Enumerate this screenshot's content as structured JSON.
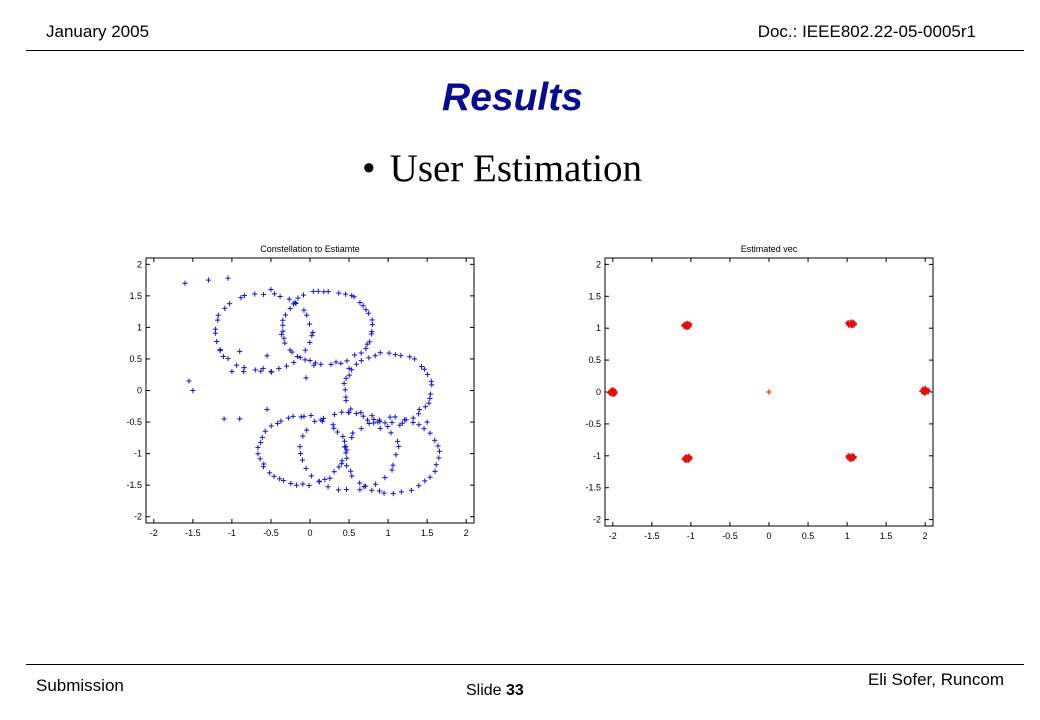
{
  "header": {
    "date": "January 2005",
    "doc": "Doc.: IEEE802.22-05-0005r1"
  },
  "title": "Results",
  "bullet": "User Estimation",
  "footer": {
    "submission": "Submission",
    "slide_label": "Slide",
    "slide_number": "33",
    "author": "Eli Sofer, Runcom"
  },
  "colors": {
    "title": "#0a0a8c",
    "series_blue": "#1515c8",
    "series_red": "#e01010"
  },
  "chart_data": [
    {
      "type": "scatter",
      "title": "Constellation to Estiamte",
      "marker": "+",
      "color": "#1515c8",
      "xlim": [
        -2.1,
        2.1
      ],
      "ylim": [
        -2.1,
        2.1
      ],
      "xticks": [
        -2,
        -1.5,
        -1,
        -0.5,
        0,
        0.5,
        1,
        1.5,
        2
      ],
      "yticks": [
        -2,
        -1.5,
        -1,
        -0.5,
        0,
        0.5,
        1,
        1.5,
        2
      ],
      "xtick_labels": [
        "-2",
        "-1.5",
        "-1",
        "-0.5",
        "0",
        "0.5",
        "1",
        "1.5",
        "2"
      ],
      "ytick_labels": [
        "-2",
        "-1.5",
        "-1",
        "-0.5",
        "0",
        "0.5",
        "1",
        "1.5",
        "2"
      ],
      "grid": false,
      "circles": [
        {
          "cx": -0.6,
          "cy": 0.92,
          "r": 0.62,
          "points": 34
        },
        {
          "cx": 0.22,
          "cy": 1.0,
          "r": 0.58,
          "points": 44
        },
        {
          "cx": 1.0,
          "cy": 0.03,
          "r": 0.56,
          "points": 38
        },
        {
          "cx": 0.5,
          "cy": -0.95,
          "r": 0.62,
          "points": 30
        },
        {
          "cx": 1.05,
          "cy": -1.03,
          "r": 0.6,
          "points": 36
        },
        {
          "cx": -0.1,
          "cy": -0.95,
          "r": 0.55,
          "points": 40
        }
      ],
      "scattered_points": [
        [
          -1.6,
          1.7
        ],
        [
          -1.3,
          1.75
        ],
        [
          -1.05,
          1.78
        ],
        [
          -0.5,
          1.6
        ],
        [
          -1.15,
          0.65
        ],
        [
          -0.9,
          0.62
        ],
        [
          -0.55,
          0.55
        ],
        [
          -1.0,
          0.3
        ],
        [
          -0.85,
          0.3
        ],
        [
          -0.6,
          0.35
        ],
        [
          -0.5,
          0.3
        ],
        [
          0.05,
          0.4
        ],
        [
          -1.55,
          0.15
        ],
        [
          -1.5,
          0.0
        ],
        [
          0.5,
          0.35
        ],
        [
          0.5,
          -0.35
        ],
        [
          -0.05,
          0.2
        ],
        [
          -1.1,
          -0.45
        ],
        [
          -0.9,
          -0.45
        ],
        [
          -0.55,
          -0.3
        ],
        [
          1.5,
          -0.5
        ],
        [
          1.15,
          -0.55
        ],
        [
          0.9,
          -0.6
        ],
        [
          1.4,
          -0.3
        ]
      ]
    },
    {
      "type": "scatter",
      "title": "Estimated vec",
      "marker": "+",
      "color": "#e01010",
      "xlim": [
        -2.1,
        2.1
      ],
      "ylim": [
        -2.1,
        2.1
      ],
      "xticks": [
        -2,
        -1.5,
        -1,
        -0.5,
        0,
        0.5,
        1,
        1.5,
        2
      ],
      "yticks": [
        -2,
        -1.5,
        -1,
        -0.5,
        0,
        0.5,
        1,
        1.5,
        2
      ],
      "xtick_labels": [
        "-2",
        "-1.5",
        "-1",
        "-0.5",
        "0",
        "0.5",
        "1",
        "1.5",
        "2"
      ],
      "ytick_labels": [
        "-2",
        "-1.5",
        "-1",
        "-0.5",
        "0",
        "0.5",
        "1",
        "1.5",
        "2"
      ],
      "grid": false,
      "clusters": [
        {
          "x": -2.0,
          "y": 0.0,
          "n": 40
        },
        {
          "x": -1.05,
          "y": 1.05,
          "n": 40
        },
        {
          "x": 1.05,
          "y": 1.07,
          "n": 40
        },
        {
          "x": 2.0,
          "y": 0.02,
          "n": 40
        },
        {
          "x": -1.05,
          "y": -1.04,
          "n": 40
        },
        {
          "x": 1.05,
          "y": -1.02,
          "n": 40
        }
      ],
      "single_points": [
        [
          0.0,
          0.0
        ]
      ]
    }
  ]
}
